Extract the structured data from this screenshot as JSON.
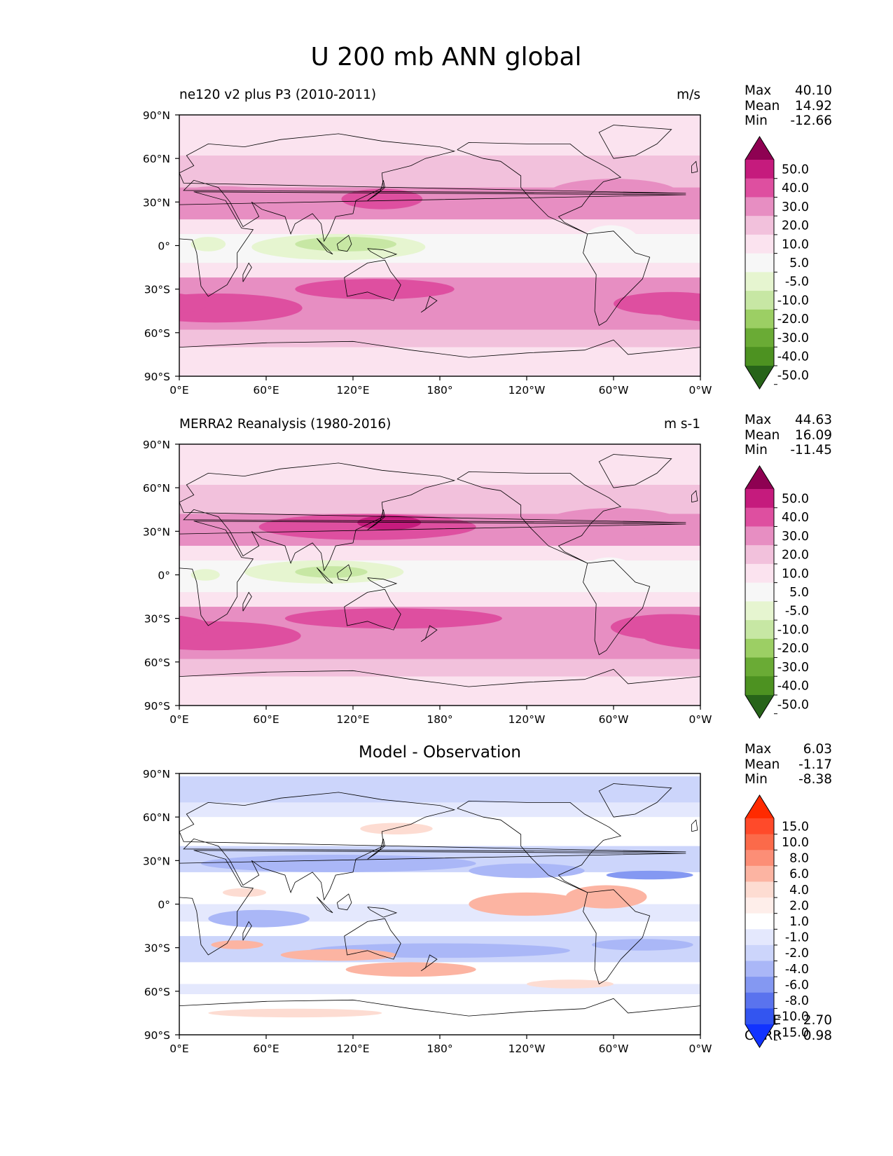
{
  "figure": {
    "title": "U 200 mb ANN global"
  },
  "chart_data": [
    {
      "type": "map-contour",
      "id": "test",
      "title": "ne120 v2 plus P3 (2010-2011)",
      "units": "m/s",
      "stats": [
        {
          "label": "Max",
          "value": "40.10"
        },
        {
          "label": "Mean",
          "value": "14.92"
        },
        {
          "label": "Min",
          "value": "-12.66"
        }
      ],
      "colorbar": {
        "levels": [
          "50.0",
          "40.0",
          "30.0",
          "20.0",
          "10.0",
          "5.0",
          "-5.0",
          "-10.0",
          "-20.0",
          "-30.0",
          "-40.0",
          "-50.0"
        ],
        "colors": [
          "#8e0152",
          "#c51b7d",
          "#de4fa0",
          "#e78ec2",
          "#f2c1dc",
          "#fbe3ef",
          "#f7f7f7",
          "#e6f5d0",
          "#c7e7a4",
          "#9ccf64",
          "#6aab35",
          "#4d9221",
          "#276419"
        ]
      },
      "xticks": [
        "0°E",
        "60°E",
        "120°E",
        "180°",
        "120°W",
        "60°W",
        "0°W"
      ],
      "yticks": [
        "90°N",
        "60°N",
        "30°N",
        "0°",
        "30°S",
        "60°S",
        "90°S"
      ],
      "xlim": [
        0,
        360
      ],
      "ylim": [
        -90,
        90
      ],
      "background": "#f2c1dc",
      "bands": [
        {
          "lat": [
            62,
            90
          ],
          "color": "#fbe3ef"
        },
        {
          "lat": [
            40,
            62
          ],
          "color": "#f2c1dc"
        },
        {
          "lat": [
            18,
            40
          ],
          "color": "#e78ec2"
        },
        {
          "lat": [
            8,
            18
          ],
          "color": "#fbe3ef"
        },
        {
          "lat": [
            -12,
            8
          ],
          "color": "#f7f7f7"
        },
        {
          "lat": [
            -22,
            -12
          ],
          "color": "#fbe3ef"
        },
        {
          "lat": [
            -58,
            -22
          ],
          "color": "#e78ec2"
        },
        {
          "lat": [
            -70,
            -58
          ],
          "color": "#f2c1dc"
        },
        {
          "lat": [
            -90,
            -70
          ],
          "color": "#fbe3ef"
        }
      ],
      "blobs": [
        {
          "lon": 140,
          "lat": 32,
          "rx": 28,
          "ry": 7,
          "color": "#de4fa0"
        },
        {
          "lon": 30,
          "lat": 36,
          "rx": 30,
          "ry": 5,
          "color": "#e78ec2"
        },
        {
          "lon": 300,
          "lat": 36,
          "rx": 45,
          "ry": 10,
          "color": "#e78ec2"
        },
        {
          "lon": 110,
          "lat": -1,
          "rx": 60,
          "ry": 9,
          "color": "#e6f5d0"
        },
        {
          "lon": 115,
          "lat": 1,
          "rx": 35,
          "ry": 5,
          "color": "#c7e7a4"
        },
        {
          "lon": 20,
          "lat": 1,
          "rx": 12,
          "ry": 5,
          "color": "#e6f5d0"
        },
        {
          "lon": 298,
          "lat": 2,
          "rx": 20,
          "ry": 12,
          "color": "#f7f7f7"
        },
        {
          "lon": 135,
          "lat": -30,
          "rx": 55,
          "ry": 7,
          "color": "#de4fa0"
        },
        {
          "lon": 25,
          "lat": -43,
          "rx": 60,
          "ry": 10,
          "color": "#de4fa0"
        },
        {
          "lon": 340,
          "lat": -40,
          "rx": 40,
          "ry": 8,
          "color": "#de4fa0"
        }
      ]
    },
    {
      "type": "map-contour",
      "id": "ref",
      "title": "MERRA2 Reanalysis (1980-2016)",
      "units": "m s-1",
      "stats": [
        {
          "label": "Max",
          "value": "44.63"
        },
        {
          "label": "Mean",
          "value": "16.09"
        },
        {
          "label": "Min",
          "value": "-11.45"
        }
      ],
      "colorbar": {
        "levels": [
          "50.0",
          "40.0",
          "30.0",
          "20.0",
          "10.0",
          "5.0",
          "-5.0",
          "-10.0",
          "-20.0",
          "-30.0",
          "-40.0",
          "-50.0"
        ],
        "colors": [
          "#8e0152",
          "#c51b7d",
          "#de4fa0",
          "#e78ec2",
          "#f2c1dc",
          "#fbe3ef",
          "#f7f7f7",
          "#e6f5d0",
          "#c7e7a4",
          "#9ccf64",
          "#6aab35",
          "#4d9221",
          "#276419"
        ]
      },
      "xticks": [
        "0°E",
        "60°E",
        "120°E",
        "180°",
        "120°W",
        "60°W",
        "0°W"
      ],
      "yticks": [
        "90°N",
        "60°N",
        "30°N",
        "0°",
        "30°S",
        "60°S",
        "90°S"
      ],
      "xlim": [
        0,
        360
      ],
      "ylim": [
        -90,
        90
      ],
      "background": "#f2c1dc",
      "bands": [
        {
          "lat": [
            62,
            90
          ],
          "color": "#fbe3ef"
        },
        {
          "lat": [
            42,
            62
          ],
          "color": "#f2c1dc"
        },
        {
          "lat": [
            20,
            42
          ],
          "color": "#e78ec2"
        },
        {
          "lat": [
            10,
            20
          ],
          "color": "#fbe3ef"
        },
        {
          "lat": [
            -12,
            10
          ],
          "color": "#f7f7f7"
        },
        {
          "lat": [
            -22,
            -12
          ],
          "color": "#fbe3ef"
        },
        {
          "lat": [
            -58,
            -22
          ],
          "color": "#e78ec2"
        },
        {
          "lat": [
            -70,
            -58
          ],
          "color": "#f2c1dc"
        },
        {
          "lat": [
            -90,
            -70
          ],
          "color": "#fbe3ef"
        }
      ],
      "blobs": [
        {
          "lon": 130,
          "lat": 33,
          "rx": 75,
          "ry": 9,
          "color": "#de4fa0"
        },
        {
          "lon": 145,
          "lat": 36,
          "rx": 22,
          "ry": 5,
          "color": "#c51b7d"
        },
        {
          "lon": 300,
          "lat": 35,
          "rx": 50,
          "ry": 11,
          "color": "#e78ec2"
        },
        {
          "lon": 100,
          "lat": 2,
          "rx": 55,
          "ry": 8,
          "color": "#e6f5d0"
        },
        {
          "lon": 105,
          "lat": 2,
          "rx": 25,
          "ry": 4,
          "color": "#c7e7a4"
        },
        {
          "lon": 18,
          "lat": 0,
          "rx": 10,
          "ry": 4,
          "color": "#e6f5d0"
        },
        {
          "lon": 297,
          "lat": 0,
          "rx": 20,
          "ry": 12,
          "color": "#f7f7f7"
        },
        {
          "lon": 148,
          "lat": -30,
          "rx": 75,
          "ry": 7,
          "color": "#de4fa0"
        },
        {
          "lon": 22,
          "lat": -42,
          "rx": 62,
          "ry": 10,
          "color": "#de4fa0"
        },
        {
          "lon": 340,
          "lat": -36,
          "rx": 42,
          "ry": 9,
          "color": "#de4fa0"
        }
      ]
    },
    {
      "type": "map-contour",
      "id": "diff",
      "title": "Model - Observation",
      "units": "",
      "stats": [
        {
          "label": "Max",
          "value": "6.03"
        },
        {
          "label": "Mean",
          "value": "-1.17"
        },
        {
          "label": "Min",
          "value": "-8.38"
        }
      ],
      "metrics": [
        {
          "label": "RMSE",
          "value": "2.70"
        },
        {
          "label": "CORR",
          "value": "0.98"
        }
      ],
      "colorbar": {
        "levels": [
          "15.0",
          "10.0",
          "8.0",
          "6.0",
          "4.0",
          "2.0",
          "1.0",
          "-1.0",
          "-2.0",
          "-4.0",
          "-6.0",
          "-8.0",
          "-10.0",
          "-15.0"
        ],
        "colors": [
          "#ff2a00",
          "#ff4a2a",
          "#fb6a4a",
          "#fc8e76",
          "#fcb4a2",
          "#fddcd2",
          "#feeeea",
          "#ffffff",
          "#e4e8fd",
          "#ccd5fb",
          "#aab7f7",
          "#8498f2",
          "#5a73ee",
          "#3355f0",
          "#1133ff"
        ]
      },
      "xticks": [
        "0°E",
        "60°E",
        "120°E",
        "180°",
        "120°W",
        "60°W",
        "0°W"
      ],
      "yticks": [
        "90°N",
        "60°N",
        "30°N",
        "0°",
        "30°S",
        "60°S",
        "90°S"
      ],
      "xlim": [
        0,
        360
      ],
      "ylim": [
        -90,
        90
      ],
      "background": "#ffffff",
      "bands": [
        {
          "lat": [
            70,
            88
          ],
          "color": "#ccd5fb"
        },
        {
          "lat": [
            60,
            70
          ],
          "color": "#e4e8fd"
        },
        {
          "lat": [
            22,
            40
          ],
          "color": "#ccd5fb"
        },
        {
          "lat": [
            -12,
            0
          ],
          "color": "#e4e8fd"
        },
        {
          "lat": [
            -40,
            -22
          ],
          "color": "#ccd5fb"
        },
        {
          "lat": [
            -62,
            -55
          ],
          "color": "#e4e8fd"
        }
      ],
      "blobs": [
        {
          "lon": 110,
          "lat": 28,
          "rx": 95,
          "ry": 6,
          "color": "#aab7f7"
        },
        {
          "lon": 240,
          "lat": 23,
          "rx": 40,
          "ry": 5,
          "color": "#aab7f7"
        },
        {
          "lon": 325,
          "lat": 20,
          "rx": 30,
          "ry": 3,
          "color": "#8498f2"
        },
        {
          "lon": 55,
          "lat": -10,
          "rx": 35,
          "ry": 6,
          "color": "#aab7f7"
        },
        {
          "lon": 180,
          "lat": -32,
          "rx": 90,
          "ry": 5,
          "color": "#aab7f7"
        },
        {
          "lon": 320,
          "lat": -28,
          "rx": 35,
          "ry": 4,
          "color": "#aab7f7"
        },
        {
          "lon": 150,
          "lat": 52,
          "rx": 25,
          "ry": 4,
          "color": "#fddcd2"
        },
        {
          "lon": 240,
          "lat": 0,
          "rx": 40,
          "ry": 8,
          "color": "#fcb4a2"
        },
        {
          "lon": 295,
          "lat": 5,
          "rx": 28,
          "ry": 8,
          "color": "#fcb4a2"
        },
        {
          "lon": 110,
          "lat": -35,
          "rx": 40,
          "ry": 4,
          "color": "#fcb4a2"
        },
        {
          "lon": 160,
          "lat": -45,
          "rx": 45,
          "ry": 5,
          "color": "#fcb4a2"
        },
        {
          "lon": 270,
          "lat": -55,
          "rx": 30,
          "ry": 3,
          "color": "#fddcd2"
        },
        {
          "lon": 40,
          "lat": -28,
          "rx": 18,
          "ry": 3,
          "color": "#fcb4a2"
        },
        {
          "lon": 45,
          "lat": 8,
          "rx": 15,
          "ry": 3,
          "color": "#fddcd2"
        },
        {
          "lon": 80,
          "lat": -75,
          "rx": 60,
          "ry": 3,
          "color": "#fddcd2"
        }
      ]
    }
  ]
}
